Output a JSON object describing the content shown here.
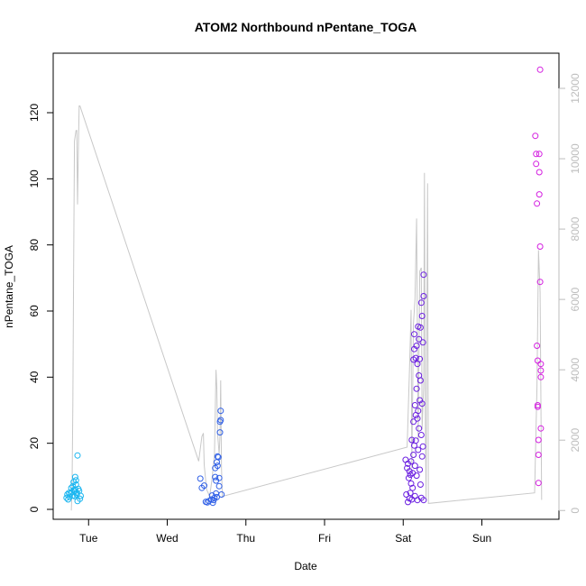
{
  "chart_data": {
    "type": "scatter",
    "title": "ATOM2 Northbound nPentane_TOGA",
    "xlabel": "Date",
    "ylabel": "nPentane_TOGA",
    "x_ticks": [
      {
        "label": "Tue",
        "day": 1
      },
      {
        "label": "Wed",
        "day": 2
      },
      {
        "label": "Thu",
        "day": 3
      },
      {
        "label": "Fri",
        "day": 4
      },
      {
        "label": "Sat",
        "day": 5
      },
      {
        "label": "Sun",
        "day": 6
      }
    ],
    "xlim": [
      0.55,
      6.98
    ],
    "ylim": [
      -3,
      138
    ],
    "y_ticks": [
      0,
      20,
      40,
      60,
      80,
      100,
      120
    ],
    "y2lim": [
      -250,
      13000
    ],
    "y2_ticks": [
      0,
      2000,
      4000,
      6000,
      8000,
      10000,
      12000
    ],
    "grid": false,
    "legend": "none",
    "colors": {
      "line": "#c8c8c8",
      "axis": "#000000",
      "right_axis": "#bdbdbd"
    },
    "line_series": [
      [
        0.78,
        0
      ],
      [
        0.79,
        600
      ],
      [
        0.8,
        3000
      ],
      [
        0.81,
        7000
      ],
      [
        0.82,
        10500
      ],
      [
        0.84,
        10800
      ],
      [
        0.85,
        10800
      ],
      [
        0.86,
        8700
      ],
      [
        0.87,
        10200
      ],
      [
        0.88,
        11500
      ],
      [
        0.89,
        11500
      ],
      [
        2.4,
        1400
      ],
      [
        2.44,
        2100
      ],
      [
        2.46,
        2200
      ],
      [
        2.47,
        1300
      ],
      [
        2.5,
        600
      ],
      [
        2.54,
        400
      ],
      [
        2.57,
        900
      ],
      [
        2.6,
        1600
      ],
      [
        2.62,
        4000
      ],
      [
        2.63,
        3500
      ],
      [
        2.64,
        2200
      ],
      [
        2.66,
        1600
      ],
      [
        2.67,
        2100
      ],
      [
        2.68,
        3700
      ],
      [
        2.69,
        1200
      ],
      [
        2.7,
        400
      ],
      [
        5.05,
        1800
      ],
      [
        5.08,
        4000
      ],
      [
        5.1,
        5700
      ],
      [
        5.11,
        1200
      ],
      [
        5.13,
        5300
      ],
      [
        5.15,
        6000
      ],
      [
        5.17,
        8300
      ],
      [
        5.19,
        2000
      ],
      [
        5.21,
        6800
      ],
      [
        5.23,
        6900
      ],
      [
        5.24,
        2300
      ],
      [
        5.26,
        3500
      ],
      [
        5.27,
        9600
      ],
      [
        5.28,
        2800
      ],
      [
        5.29,
        300
      ],
      [
        5.31,
        9300
      ],
      [
        5.32,
        200
      ],
      [
        6.67,
        500
      ],
      [
        6.7,
        3500
      ],
      [
        6.72,
        7400
      ],
      [
        6.74,
        6200
      ],
      [
        6.76,
        300
      ]
    ],
    "series": [
      {
        "color": "#1bb6f0",
        "points": [
          [
            0.72,
            3.5
          ],
          [
            0.73,
            4.5
          ],
          [
            0.74,
            3.0
          ],
          [
            0.75,
            5.0
          ],
          [
            0.76,
            3.8
          ],
          [
            0.77,
            4.8
          ],
          [
            0.78,
            6.5
          ],
          [
            0.79,
            5.2
          ],
          [
            0.8,
            7.0
          ],
          [
            0.8,
            4.2
          ],
          [
            0.81,
            5.8
          ],
          [
            0.81,
            8.3
          ],
          [
            0.82,
            5.5
          ],
          [
            0.82,
            4.0
          ],
          [
            0.83,
            9.8
          ],
          [
            0.83,
            6.0
          ],
          [
            0.84,
            7.5
          ],
          [
            0.84,
            8.8
          ],
          [
            0.85,
            5.0
          ],
          [
            0.85,
            4.5
          ],
          [
            0.86,
            16.3
          ],
          [
            0.86,
            2.5
          ],
          [
            0.87,
            6.2
          ],
          [
            0.88,
            5.6
          ],
          [
            0.89,
            3.2
          ],
          [
            0.9,
            4.1
          ]
        ]
      },
      {
        "color": "#2f5fe6",
        "points": [
          [
            2.42,
            9.3
          ],
          [
            2.44,
            6.5
          ],
          [
            2.47,
            7.2
          ],
          [
            2.49,
            2.3
          ],
          [
            2.51,
            2.1
          ],
          [
            2.53,
            2.5
          ],
          [
            2.56,
            3.0
          ],
          [
            2.57,
            4.2
          ],
          [
            2.58,
            2.0
          ],
          [
            2.59,
            2.8
          ],
          [
            2.6,
            3.5
          ],
          [
            2.61,
            9.8
          ],
          [
            2.61,
            12.5
          ],
          [
            2.62,
            8.7
          ],
          [
            2.62,
            4.8
          ],
          [
            2.63,
            14.3
          ],
          [
            2.63,
            3.7
          ],
          [
            2.64,
            16.0
          ],
          [
            2.64,
            13.2
          ],
          [
            2.65,
            15.8
          ],
          [
            2.66,
            9.5
          ],
          [
            2.66,
            7.0
          ],
          [
            2.67,
            26.5
          ],
          [
            2.67,
            23.3
          ],
          [
            2.68,
            27.0
          ],
          [
            2.68,
            29.8
          ],
          [
            2.69,
            4.5
          ]
        ]
      },
      {
        "color": "#6a1ee0",
        "points": [
          [
            5.03,
            15.0
          ],
          [
            5.04,
            4.5
          ],
          [
            5.05,
            12.5
          ],
          [
            5.06,
            13.8
          ],
          [
            5.06,
            2.2
          ],
          [
            5.07,
            9.5
          ],
          [
            5.08,
            11.5
          ],
          [
            5.08,
            3.3
          ],
          [
            5.09,
            10.5
          ],
          [
            5.09,
            5.0
          ],
          [
            5.1,
            14.5
          ],
          [
            5.1,
            7.8
          ],
          [
            5.11,
            21.0
          ],
          [
            5.11,
            3.0
          ],
          [
            5.12,
            11.0
          ],
          [
            5.12,
            6.5
          ],
          [
            5.13,
            26.5
          ],
          [
            5.13,
            45.3
          ],
          [
            5.13,
            16.5
          ],
          [
            5.14,
            48.5
          ],
          [
            5.14,
            53.0
          ],
          [
            5.14,
            19.3
          ],
          [
            5.15,
            31.5
          ],
          [
            5.15,
            13.2
          ],
          [
            5.15,
            4.0
          ],
          [
            5.16,
            45.8
          ],
          [
            5.16,
            28.5
          ],
          [
            5.16,
            20.8
          ],
          [
            5.17,
            49.5
          ],
          [
            5.17,
            36.5
          ],
          [
            5.17,
            10.2
          ],
          [
            5.18,
            44.0
          ],
          [
            5.18,
            27.5
          ],
          [
            5.18,
            2.8
          ],
          [
            5.19,
            55.3
          ],
          [
            5.19,
            29.8
          ],
          [
            5.19,
            18.0
          ],
          [
            5.2,
            51.5
          ],
          [
            5.2,
            40.5
          ],
          [
            5.2,
            24.5
          ],
          [
            5.21,
            45.5
          ],
          [
            5.21,
            33.0
          ],
          [
            5.21,
            12.0
          ],
          [
            5.22,
            55.0
          ],
          [
            5.22,
            39.0
          ],
          [
            5.22,
            7.5
          ],
          [
            5.23,
            62.5
          ],
          [
            5.23,
            22.5
          ],
          [
            5.23,
            3.5
          ],
          [
            5.24,
            58.5
          ],
          [
            5.24,
            32.0
          ],
          [
            5.24,
            16.0
          ],
          [
            5.25,
            50.5
          ],
          [
            5.25,
            19.0
          ],
          [
            5.26,
            71.0
          ],
          [
            5.26,
            64.5
          ],
          [
            5.26,
            2.8
          ]
        ]
      },
      {
        "color": "#d41fe0",
        "points": [
          [
            6.68,
            113.0
          ],
          [
            6.69,
            104.5
          ],
          [
            6.69,
            107.5
          ],
          [
            6.7,
            92.5
          ],
          [
            6.7,
            49.5
          ],
          [
            6.71,
            45.0
          ],
          [
            6.71,
            31.5
          ],
          [
            6.71,
            31.0
          ],
          [
            6.72,
            21.0
          ],
          [
            6.72,
            16.5
          ],
          [
            6.72,
            8.0
          ],
          [
            6.73,
            107.5
          ],
          [
            6.73,
            102.0
          ],
          [
            6.73,
            95.3
          ],
          [
            6.74,
            79.5
          ],
          [
            6.74,
            133.0
          ],
          [
            6.74,
            68.8
          ],
          [
            6.75,
            44.0
          ],
          [
            6.75,
            42.0
          ],
          [
            6.75,
            40.0
          ],
          [
            6.75,
            24.5
          ]
        ]
      }
    ]
  }
}
